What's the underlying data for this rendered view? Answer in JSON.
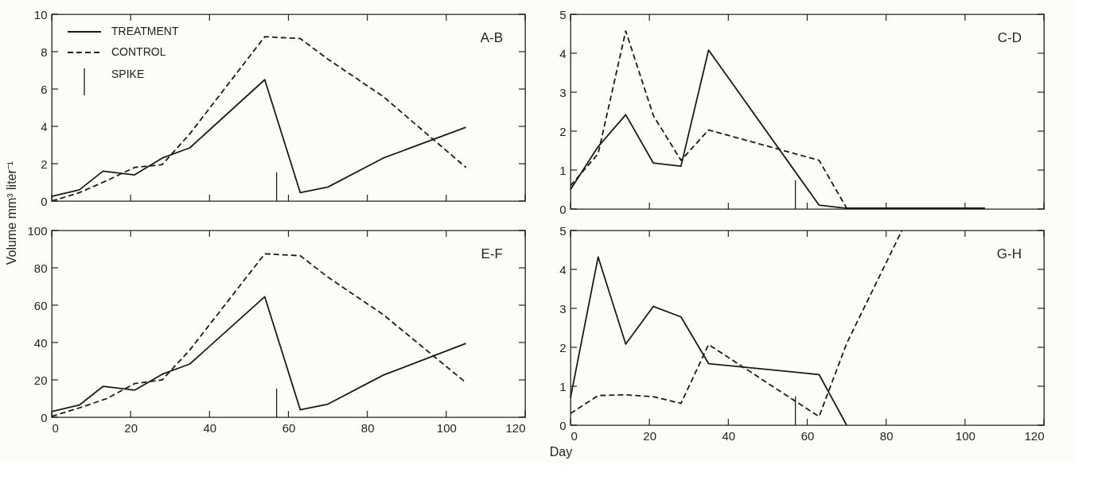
{
  "chart_data": [
    {
      "type": "line",
      "title": "A-B",
      "ylabel": "Volume mm³ liter⁻¹",
      "annotations": [
        "SPIKE"
      ],
      "legend": "top left",
      "tick_labels": "y",
      "grid": false,
      "xlim": [
        0,
        120
      ],
      "ylim": [
        0,
        10
      ],
      "yticks": [
        0,
        2,
        4,
        6,
        8,
        10
      ],
      "xticks": [
        {
          "value": 0,
          "label": null
        },
        {
          "value": 20,
          "label": null
        },
        {
          "value": 40,
          "label": null
        },
        {
          "value": 60,
          "label": null
        },
        {
          "value": 80,
          "label": null
        },
        {
          "value": 100,
          "label": null
        },
        {
          "value": 120,
          "label": null
        }
      ],
      "ref_lines": [
        {
          "axis": "x",
          "value": 57
        }
      ],
      "series": [
        {
          "name": "TREATMENT",
          "color": "#1a1a1a",
          "line_style": "solid",
          "x": [
            0,
            7,
            13,
            21,
            28,
            35,
            54,
            63,
            70,
            84,
            105
          ],
          "values": [
            0.25,
            0.6,
            1.6,
            1.4,
            2.3,
            2.85,
            6.5,
            0.45,
            0.75,
            2.3,
            3.95
          ]
        },
        {
          "name": "CONTROL",
          "color": "#1a1a1a",
          "line_style": "dashed",
          "x": [
            0,
            7,
            14,
            21,
            28,
            35,
            54,
            63,
            70,
            84,
            105
          ],
          "values": [
            0,
            0.45,
            1.1,
            1.8,
            1.95,
            3.6,
            8.8,
            8.7,
            7.6,
            5.6,
            1.8
          ]
        }
      ]
    },
    {
      "type": "line",
      "title": "C-D",
      "tick_labels": "y",
      "grid": false,
      "xlim": [
        0,
        120
      ],
      "ylim": [
        0,
        5
      ],
      "yticks": [
        0,
        1,
        2,
        3,
        4,
        5
      ],
      "xticks": [
        {
          "value": 0,
          "label": null
        },
        {
          "value": 20,
          "label": null
        },
        {
          "value": 40,
          "label": null
        },
        {
          "value": 60,
          "label": null
        },
        {
          "value": 80,
          "label": null
        },
        {
          "value": 100,
          "label": null
        },
        {
          "value": 120,
          "label": null
        }
      ],
      "ref_lines": [
        {
          "axis": "x",
          "value": 57
        }
      ],
      "series": [
        {
          "color": "#1a1a1a",
          "line_style": "solid",
          "x": [
            0,
            7,
            14,
            21,
            28,
            35,
            63,
            70,
            105
          ],
          "values": [
            0.5,
            1.6,
            2.42,
            1.18,
            1.1,
            4.08,
            0.1,
            0.02,
            0.02
          ]
        },
        {
          "color": "#1a1a1a",
          "line_style": "dashed",
          "x": [
            0,
            7,
            14,
            21,
            28,
            35,
            63,
            70,
            105
          ],
          "values": [
            0.6,
            1.42,
            4.57,
            2.4,
            1.25,
            2.03,
            1.25,
            0.02,
            0.02
          ]
        }
      ]
    },
    {
      "type": "line",
      "title": "E-F",
      "grid": false,
      "xlim": [
        0,
        120
      ],
      "ylim": [
        0,
        100
      ],
      "yticks": [
        0,
        20,
        40,
        60,
        80,
        100
      ],
      "xticks": [
        0,
        20,
        40,
        60,
        80,
        100,
        120
      ],
      "ref_lines": [
        {
          "axis": "x",
          "value": 57
        }
      ],
      "series": [
        {
          "color": "#1a1a1a",
          "line_style": "solid",
          "x": [
            0,
            7,
            13,
            21,
            28,
            35,
            54,
            63,
            70,
            84,
            105
          ],
          "values": [
            3,
            6.5,
            16.5,
            14.5,
            23,
            28.5,
            64.5,
            4,
            7,
            22.5,
            39.5
          ]
        },
        {
          "color": "#1a1a1a",
          "line_style": "dashed",
          "x": [
            0,
            7,
            14,
            21,
            28,
            35,
            54,
            63,
            70,
            84,
            105
          ],
          "values": [
            0.5,
            5,
            10,
            18,
            20,
            36,
            87.5,
            86.5,
            75,
            55,
            18.5
          ]
        }
      ]
    },
    {
      "type": "line",
      "title": "G-H",
      "xlabel": "Day",
      "grid": false,
      "xlim": [
        0,
        120
      ],
      "ylim": [
        0,
        5
      ],
      "yticks": [
        0,
        1,
        2,
        3,
        4,
        5
      ],
      "xticks": [
        0,
        20,
        40,
        60,
        80,
        100,
        120
      ],
      "ref_lines": [
        {
          "axis": "x",
          "value": 57
        }
      ],
      "series": [
        {
          "color": "#1a1a1a",
          "line_style": "solid",
          "x": [
            0,
            7,
            14,
            21,
            28,
            35,
            63,
            70
          ],
          "values": [
            0.7,
            4.32,
            2.08,
            3.05,
            2.78,
            1.58,
            1.3,
            0
          ]
        },
        {
          "color": "#1a1a1a",
          "line_style": "dashed",
          "x": [
            0,
            7,
            14,
            21,
            28,
            35,
            63,
            70,
            84
          ],
          "values": [
            0.3,
            0.76,
            0.78,
            0.73,
            0.56,
            2.07,
            0.22,
            2.1,
            5.0
          ]
        }
      ]
    }
  ]
}
